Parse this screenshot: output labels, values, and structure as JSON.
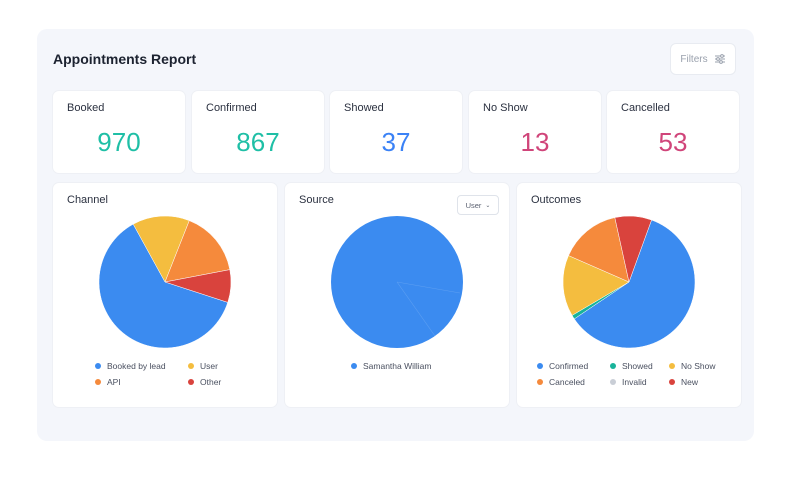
{
  "header": {
    "title": "Appointments Report",
    "filters_label": "Filters"
  },
  "stats": [
    {
      "label": "Booked",
      "value": "970",
      "color": "#1fbfa6"
    },
    {
      "label": "Confirmed",
      "value": "867",
      "color": "#1fbfa6"
    },
    {
      "label": "Showed",
      "value": "37",
      "color": "#3b82f6"
    },
    {
      "label": "No Show",
      "value": "13",
      "color": "#d0457a"
    },
    {
      "label": "Cancelled",
      "value": "53",
      "color": "#d0457a"
    }
  ],
  "charts": {
    "channel": {
      "title": "Channel",
      "legend": [
        {
          "label": "Booked by lead",
          "color": "#3b8bf0"
        },
        {
          "label": "User",
          "color": "#f4bd3f"
        },
        {
          "label": "API",
          "color": "#f58a3c"
        },
        {
          "label": "Other",
          "color": "#d9433d"
        }
      ]
    },
    "source": {
      "title": "Source",
      "dropdown": "User",
      "legend": [
        {
          "label": "Samantha William",
          "color": "#3b8bf0"
        }
      ]
    },
    "outcomes": {
      "title": "Outcomes",
      "legend": [
        {
          "label": "Confirmed",
          "color": "#3b8bf0"
        },
        {
          "label": "Showed",
          "color": "#18b39a"
        },
        {
          "label": "No Show",
          "color": "#f4bd3f"
        },
        {
          "label": "Canceled",
          "color": "#f58a3c"
        },
        {
          "label": "Invalid",
          "color": "#c9ced6"
        },
        {
          "label": "New",
          "color": "#d9433d"
        }
      ]
    }
  },
  "chart_data": [
    {
      "type": "pie",
      "title": "Channel",
      "categories": [
        "Booked by lead",
        "User",
        "API",
        "Other"
      ],
      "values": [
        62,
        14,
        16,
        8
      ]
    },
    {
      "type": "pie",
      "title": "Source",
      "categories": [
        "Samantha William"
      ],
      "values": [
        100
      ]
    },
    {
      "type": "pie",
      "title": "Outcomes",
      "categories": [
        "Confirmed",
        "Showed",
        "No Show",
        "Canceled",
        "Invalid",
        "New"
      ],
      "values": [
        60,
        1,
        15,
        15,
        0,
        9
      ]
    }
  ]
}
